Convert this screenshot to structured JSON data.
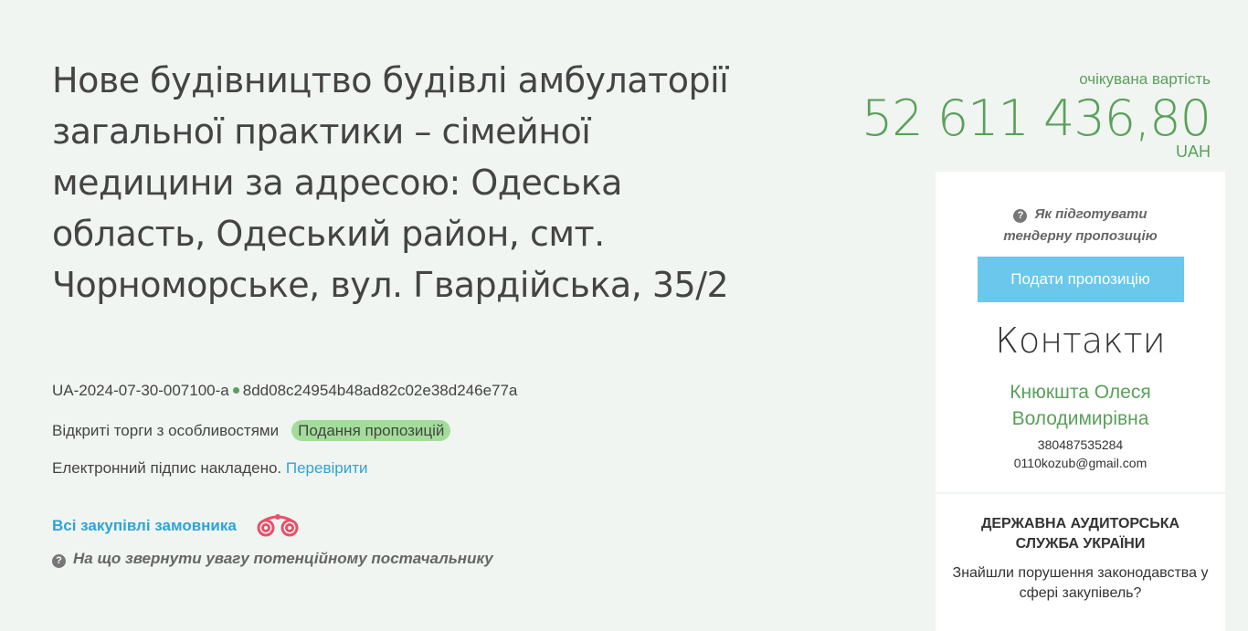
{
  "title": "Нове будівництво будівлі амбулаторії загальної практики – сімейної медицини за адресою: Одеська область, Одеський район, смт. Чорноморське, вул. Гвардійська, 35/2",
  "tender_id": "UA-2024-07-30-007100-a",
  "hash": "8dd08c24954b48ad82c02e38d246e77a",
  "procedure": "Відкриті торги з особливостями",
  "status": "Подання пропозицій",
  "signature_text": "Електронний підпис накладено.",
  "verify_link": "Перевірити",
  "all_purchases": "Всі закупівлі замовника",
  "attention_link": "На що звернути увагу потенційному постачальнику",
  "price": {
    "label": "очікувана вартість",
    "amount": "52 611 436,80",
    "currency": "UAH"
  },
  "panel": {
    "howto": "Як підготувати тендерну пропозицію",
    "submit": "Подати пропозицію",
    "contacts_title": "Контакти",
    "contact_name": "Кнюкшта Олеся Володимирівна",
    "phone": "380487535284",
    "email": "0110kozub@gmail.com",
    "audit_title": "ДЕРЖАВНА АУДИТОРСЬКА СЛУЖБА УКРАЇНИ",
    "audit_text": "Знайшли порушення законодавства у сфері закупівель?"
  }
}
